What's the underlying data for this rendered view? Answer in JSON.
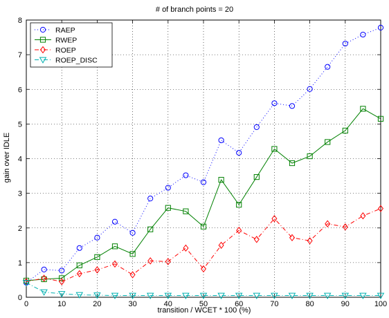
{
  "chart_data": {
    "type": "line",
    "title": "# of branch points = 20",
    "xlabel": "transition / WCET * 100 (%)",
    "ylabel": "gain over IDLE",
    "xlim": [
      0,
      100
    ],
    "ylim": [
      0,
      8
    ],
    "xticks": [
      0,
      10,
      20,
      30,
      40,
      50,
      60,
      70,
      80,
      90,
      100
    ],
    "yticks": [
      0,
      1,
      2,
      3,
      4,
      5,
      6,
      7,
      8
    ],
    "grid": true,
    "legend_position": "top-left",
    "x": [
      0,
      5,
      10,
      15,
      20,
      25,
      30,
      35,
      40,
      45,
      50,
      55,
      60,
      65,
      70,
      75,
      80,
      85,
      90,
      95,
      100
    ],
    "series": [
      {
        "name": "RAEP",
        "color": "#0000ff",
        "line": "dotted",
        "marker": "circle",
        "values": [
          0.42,
          0.8,
          0.77,
          1.42,
          1.72,
          2.18,
          1.86,
          2.85,
          3.16,
          3.52,
          3.32,
          4.53,
          4.17,
          4.91,
          5.6,
          5.52,
          6.01,
          6.65,
          7.32,
          7.58,
          7.78
        ]
      },
      {
        "name": "RWEP",
        "color": "#008000",
        "line": "solid",
        "marker": "square",
        "values": [
          0.48,
          0.52,
          0.55,
          0.92,
          1.16,
          1.47,
          1.25,
          1.96,
          2.58,
          2.48,
          2.04,
          3.39,
          2.67,
          3.47,
          4.28,
          3.87,
          4.07,
          4.48,
          4.81,
          5.44,
          5.15
        ]
      },
      {
        "name": "ROEP",
        "color": "#ff0000",
        "line": "dashdot",
        "marker": "diamond",
        "values": [
          0.45,
          0.55,
          0.45,
          0.68,
          0.79,
          0.96,
          0.65,
          1.05,
          1.03,
          1.42,
          0.82,
          1.5,
          1.93,
          1.67,
          2.27,
          1.72,
          1.63,
          2.12,
          2.03,
          2.35,
          2.56
        ]
      },
      {
        "name": "ROEP_DISC",
        "color": "#00b0b0",
        "line": "dashdot",
        "marker": "triangle-down",
        "values": [
          0.42,
          0.15,
          0.1,
          0.07,
          0.06,
          0.05,
          0.05,
          0.05,
          0.05,
          0.05,
          0.05,
          0.05,
          0.05,
          0.05,
          0.05,
          0.05,
          0.05,
          0.05,
          0.05,
          0.05,
          0.05
        ]
      }
    ]
  }
}
